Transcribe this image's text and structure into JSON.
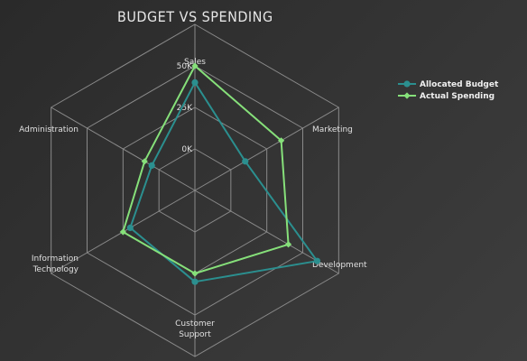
{
  "chart_data": {
    "type": "radar",
    "title": "Budget vs Spending",
    "axes": [
      "Sales",
      "Marketing",
      "Development",
      "Customer Support",
      "Information Technology",
      "Administration"
    ],
    "axis_label_lines": [
      [
        "Sales"
      ],
      [
        "Marketing"
      ],
      [
        "Development"
      ],
      [
        "Customer",
        "Support"
      ],
      [
        "Information",
        "Technology"
      ],
      [
        "Administration"
      ]
    ],
    "ticks": [
      0,
      25000,
      50000
    ],
    "tick_labels": [
      "0K",
      "25K",
      "50K"
    ],
    "rmax": 75000,
    "rmin": -25000,
    "series": [
      {
        "name": "Allocated Budget",
        "color": "#2b8f8f",
        "values": [
          40000,
          10000,
          60000,
          30000,
          20000,
          5000
        ]
      },
      {
        "name": "Actual Spending",
        "color": "#86e07a",
        "values": [
          50000,
          35000,
          40000,
          25000,
          25000,
          10000
        ]
      }
    ],
    "legend_position": "top-right",
    "grid": true
  }
}
